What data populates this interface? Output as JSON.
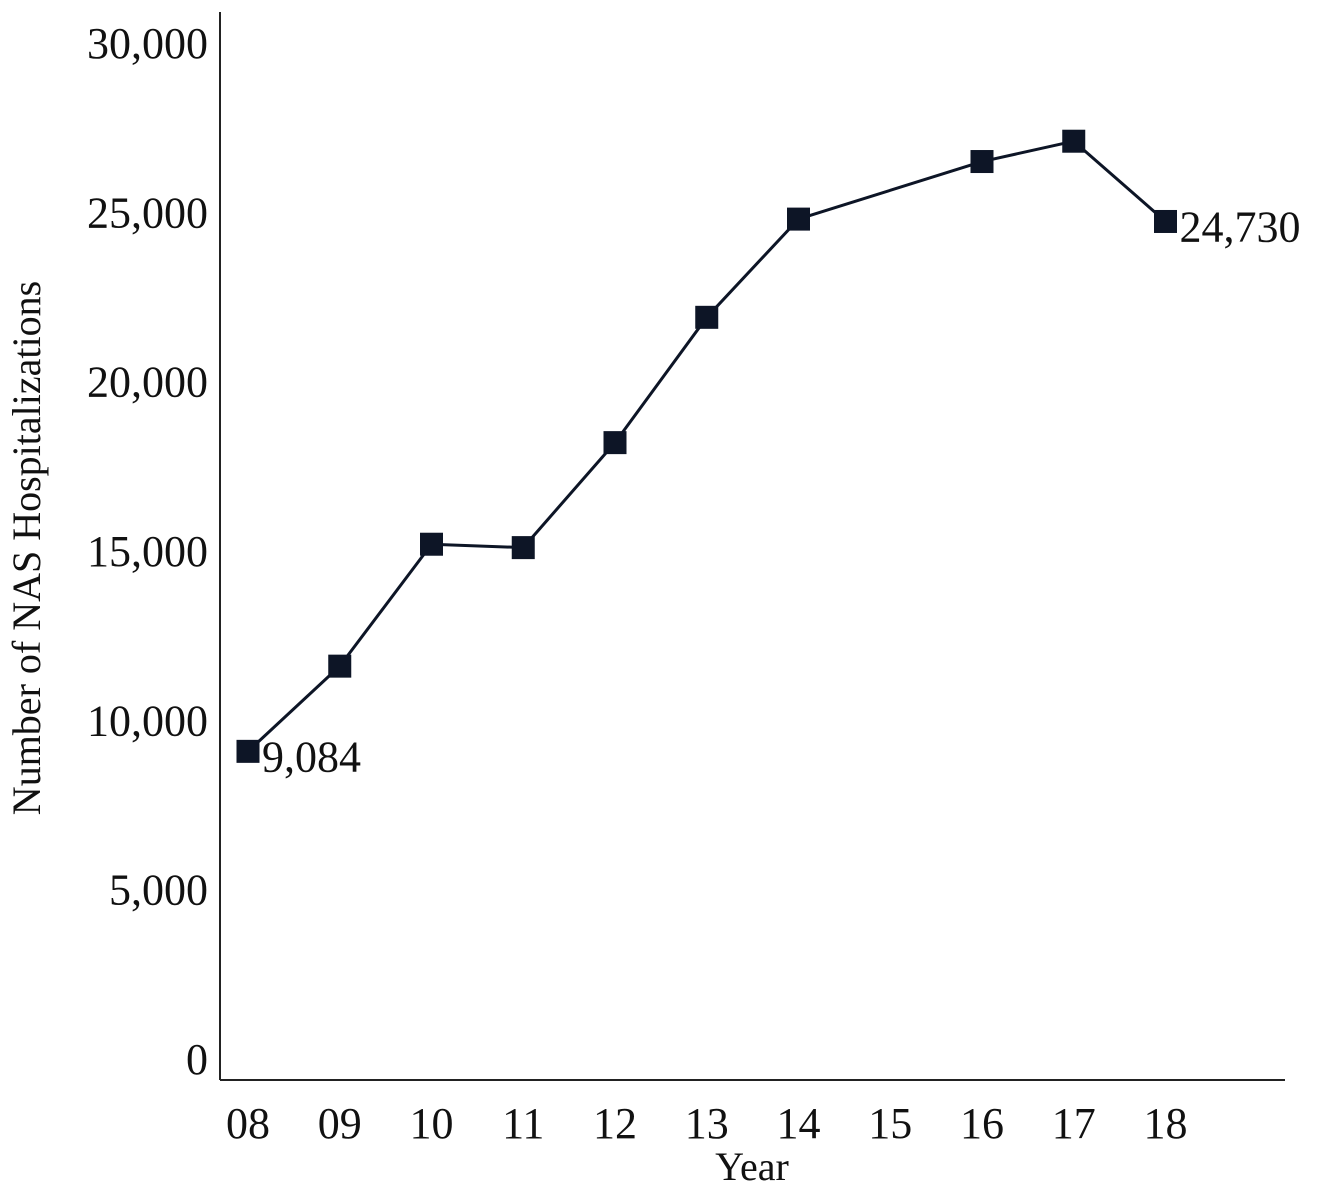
{
  "chart_data": {
    "type": "line",
    "xlabel": "Year",
    "ylabel": "Number of NAS Hospitalizations",
    "categories": [
      "08",
      "09",
      "10",
      "11",
      "12",
      "13",
      "14",
      "15",
      "16",
      "17",
      "18"
    ],
    "series": [
      {
        "x": [
          "08",
          "09",
          "10",
          "11",
          "12",
          "13",
          "14",
          "16",
          "17",
          "18"
        ],
        "values": [
          9084,
          11600,
          15200,
          15100,
          18200,
          21900,
          24800,
          26500,
          27100,
          24730
        ],
        "color": "#0d1526",
        "marker": "square"
      }
    ],
    "data_labels": [
      {
        "x": "08",
        "text": "9,084"
      },
      {
        "x": "18",
        "text": "24,730"
      }
    ],
    "ylim": [
      0,
      30000
    ],
    "yticks": [
      0,
      5000,
      10000,
      15000,
      20000,
      25000,
      30000
    ],
    "ytick_labels": [
      "0",
      "5,000",
      "10,000",
      "15,000",
      "20,000",
      "25,000",
      "30,000"
    ],
    "grid": false,
    "legend": "none"
  }
}
